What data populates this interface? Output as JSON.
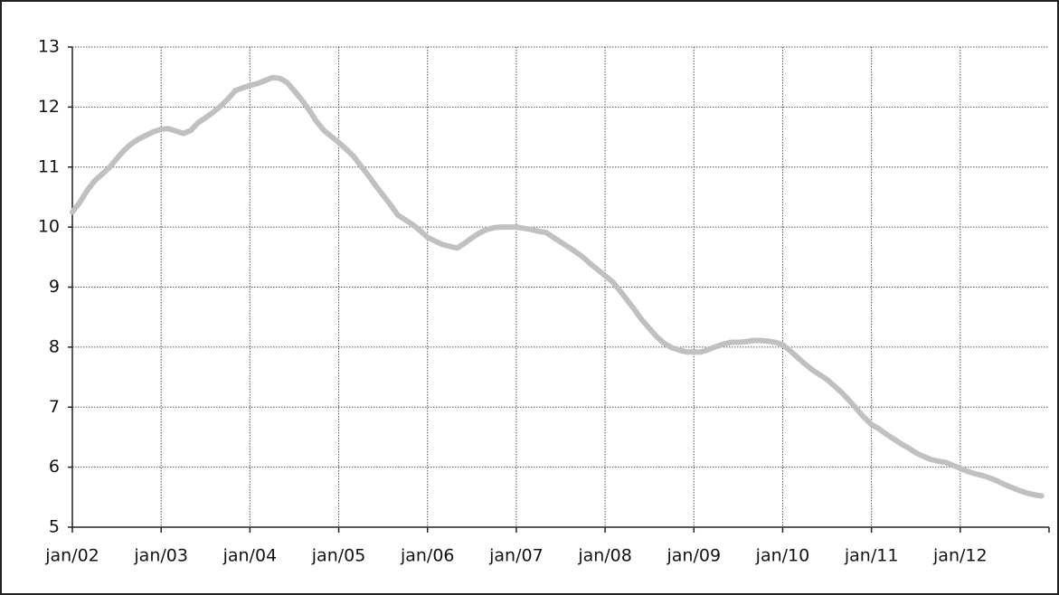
{
  "chart_data": {
    "type": "line",
    "categories": [
      "jan/02",
      null,
      null,
      null,
      null,
      null,
      null,
      null,
      null,
      null,
      null,
      null,
      "jan/03",
      null,
      null,
      null,
      null,
      null,
      null,
      null,
      null,
      null,
      null,
      null,
      "jan/04",
      null,
      null,
      null,
      null,
      null,
      null,
      null,
      null,
      null,
      null,
      null,
      "jan/05",
      null,
      null,
      null,
      null,
      null,
      null,
      null,
      null,
      null,
      null,
      null,
      "jan/06",
      null,
      null,
      null,
      null,
      null,
      null,
      null,
      null,
      null,
      null,
      null,
      "jan/07",
      null,
      null,
      null,
      null,
      null,
      null,
      null,
      null,
      null,
      null,
      null,
      "jan/08",
      null,
      null,
      null,
      null,
      null,
      null,
      null,
      null,
      null,
      null,
      null,
      "jan/09",
      null,
      null,
      null,
      null,
      null,
      null,
      null,
      null,
      null,
      null,
      null,
      "jan/10",
      null,
      null,
      null,
      null,
      null,
      null,
      null,
      null,
      null,
      null,
      null,
      "jan/11",
      null,
      null,
      null,
      null,
      null,
      null,
      null,
      null,
      null,
      null,
      null,
      "jan/12",
      null,
      null,
      null,
      null,
      null,
      null,
      null,
      null,
      null,
      null,
      null
    ],
    "values": [
      10.25,
      10.41,
      10.61,
      10.77,
      10.88,
      10.99,
      11.14,
      11.28,
      11.39,
      11.47,
      11.53,
      11.59,
      11.63,
      11.64,
      11.6,
      11.56,
      11.61,
      11.74,
      11.82,
      11.91,
      12.01,
      12.13,
      12.27,
      12.32,
      12.36,
      12.39,
      12.44,
      12.49,
      12.48,
      12.41,
      12.27,
      12.12,
      11.95,
      11.76,
      11.61,
      11.51,
      11.41,
      11.3,
      11.18,
      11.02,
      10.86,
      10.69,
      10.53,
      10.37,
      10.2,
      10.12,
      10.04,
      9.94,
      9.83,
      9.77,
      9.71,
      9.68,
      9.65,
      9.73,
      9.82,
      9.9,
      9.96,
      9.99,
      10.0,
      10.0,
      10.0,
      9.98,
      9.96,
      9.93,
      9.91,
      9.83,
      9.75,
      9.67,
      9.59,
      9.5,
      9.39,
      9.29,
      9.19,
      9.09,
      8.94,
      8.78,
      8.62,
      8.45,
      8.31,
      8.17,
      8.06,
      7.99,
      7.95,
      7.92,
      7.92,
      7.92,
      7.96,
      8.01,
      8.05,
      8.08,
      8.08,
      8.09,
      8.11,
      8.11,
      8.1,
      8.08,
      8.04,
      7.94,
      7.83,
      7.72,
      7.62,
      7.54,
      7.46,
      7.35,
      7.24,
      7.11,
      6.97,
      6.83,
      6.71,
      6.64,
      6.55,
      6.47,
      6.39,
      6.32,
      6.24,
      6.18,
      6.13,
      6.1,
      6.08,
      6.03,
      5.98,
      5.93,
      5.89,
      5.86,
      5.82,
      5.77,
      5.71,
      5.66,
      5.61,
      5.57,
      5.54,
      5.52
    ],
    "color": "#c0c0c0",
    "ylim": [
      5,
      13
    ],
    "yticks": [
      5,
      6,
      7,
      8,
      9,
      10,
      11,
      12,
      13
    ],
    "grid": true
  }
}
